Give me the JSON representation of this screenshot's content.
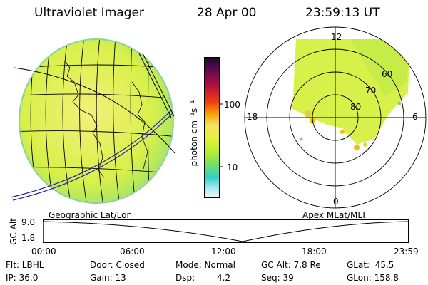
{
  "header": {
    "title": "Ultraviolet Imager",
    "date": "28 Apr 00",
    "time": "23:59:13 UT"
  },
  "colorbar": {
    "unit_label": "photon cm⁻²s⁻¹",
    "ticks": [
      "100",
      "10"
    ],
    "scale": "log"
  },
  "panels": {
    "left_label": "Geographic Lat/Lon",
    "right_label": "Apex MLat/MLT"
  },
  "polar": {
    "hour_labels": {
      "top": "12",
      "left": "18",
      "right": "6",
      "bottom": "0"
    },
    "lat_labels": [
      "60",
      "70",
      "80"
    ]
  },
  "altitude_plot": {
    "ylabel": "GC Alt",
    "yticks": [
      "9.0",
      "1.8"
    ],
    "xticks": [
      "00:00",
      "06:00",
      "12:00",
      "18:00",
      "23:59"
    ]
  },
  "status": {
    "flt": "Flt: LBHL",
    "ip": "IP: 36.0",
    "door": "Door: Closed",
    "gain": "Gain: 13",
    "mode": "Mode: Normal",
    "dsp_label": "Dsp:",
    "dsp_value": "4.2",
    "gc_alt": "GC Alt: 7.8 Re",
    "seq": "Seq: 39",
    "glat": "GLat:  45.5",
    "glon": "GLon: 158.8"
  },
  "colors": {
    "aurora_green": "#d8f04a",
    "background": "#ffffff",
    "orbit_line": "#000000",
    "marker_red": "#e01010"
  }
}
